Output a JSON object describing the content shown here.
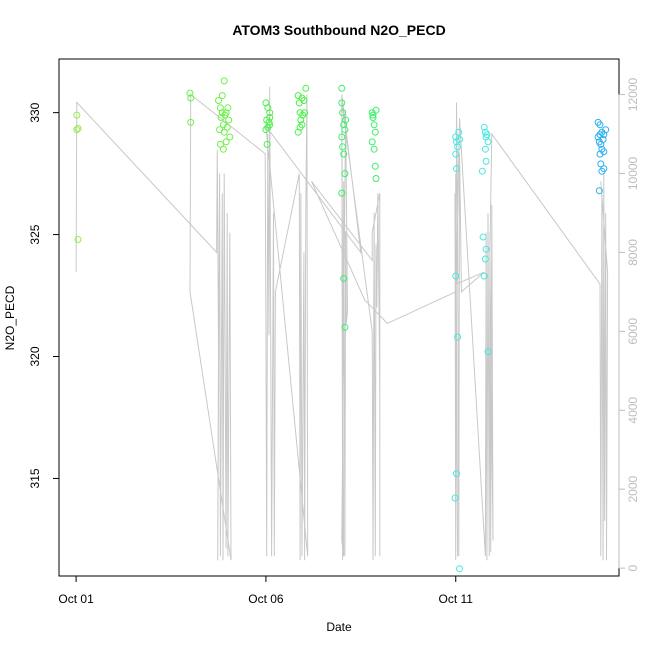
{
  "chart_data": {
    "type": "scatter",
    "title": "ATOM3 Southbound N2O_PECD",
    "xlabel": "Date",
    "ylabel": "N2O_PECD",
    "x_ticks": [
      {
        "label": "Oct 01",
        "value": 0
      },
      {
        "label": "Oct 06",
        "value": 5
      },
      {
        "label": "Oct 11",
        "value": 10
      }
    ],
    "xlim": [
      -0.45,
      14.3
    ],
    "y_ticks": [
      315,
      320,
      325,
      330
    ],
    "ylim": [
      311.0,
      332.2
    ],
    "y2_ticks": [
      0,
      2000,
      4000,
      6000,
      8000,
      10000,
      12000
    ],
    "y2lim": [
      -200,
      12900
    ],
    "grid": false,
    "legend": "none",
    "colors": {
      "frame": "#000000",
      "altitude_line": "#c8c8c8",
      "right_axis": "#bdbdbd"
    },
    "series": [
      {
        "color": "#8ef04a",
        "points": [
          [
            0.02,
            329.9
          ],
          [
            0.02,
            329.3
          ],
          [
            0.05,
            329.35
          ],
          [
            0.05,
            324.8
          ]
        ]
      },
      {
        "color": "#6ff04a",
        "points": [
          [
            3.0,
            330.8
          ],
          [
            3.02,
            330.6
          ],
          [
            3.02,
            329.6
          ],
          [
            3.75,
            330.5
          ],
          [
            3.8,
            330.2
          ],
          [
            3.82,
            329.8
          ],
          [
            3.85,
            330.7
          ],
          [
            3.85,
            330.0
          ],
          [
            3.88,
            329.5
          ],
          [
            3.9,
            329.2
          ],
          [
            3.92,
            329.9
          ],
          [
            3.95,
            330.0
          ],
          [
            3.95,
            328.8
          ],
          [
            3.78,
            329.3
          ],
          [
            3.8,
            328.7
          ],
          [
            3.98,
            329.4
          ],
          [
            4.0,
            330.2
          ],
          [
            4.02,
            329.7
          ],
          [
            4.05,
            329.0
          ],
          [
            3.88,
            328.5
          ],
          [
            3.9,
            331.3
          ]
        ]
      },
      {
        "color": "#4cf04a",
        "points": [
          [
            5.0,
            330.4
          ],
          [
            5.05,
            330.2
          ],
          [
            5.02,
            329.7
          ],
          [
            5.08,
            329.6
          ],
          [
            5.1,
            329.5
          ],
          [
            5.0,
            329.3
          ],
          [
            5.05,
            329.4
          ],
          [
            5.1,
            329.8
          ],
          [
            5.03,
            328.7
          ],
          [
            5.1,
            330.0
          ],
          [
            5.85,
            330.7
          ],
          [
            5.88,
            330.4
          ],
          [
            5.9,
            330.0
          ],
          [
            5.92,
            329.7
          ],
          [
            5.95,
            329.5
          ],
          [
            5.85,
            329.2
          ],
          [
            5.9,
            329.4
          ],
          [
            5.97,
            329.9
          ],
          [
            6.0,
            330.5
          ],
          [
            6.02,
            330.0
          ],
          [
            6.05,
            331.0
          ],
          [
            5.95,
            330.6
          ]
        ]
      },
      {
        "color": "#3cf06a",
        "points": [
          [
            7.0,
            331.0
          ],
          [
            7.0,
            330.4
          ],
          [
            7.02,
            330.0
          ],
          [
            7.05,
            329.5
          ],
          [
            7.08,
            329.3
          ],
          [
            7.0,
            329.0
          ],
          [
            7.02,
            328.6
          ],
          [
            7.05,
            328.3
          ],
          [
            7.08,
            327.5
          ],
          [
            7.0,
            326.7
          ],
          [
            7.05,
            323.2
          ],
          [
            7.08,
            321.2
          ],
          [
            7.1,
            329.7
          ],
          [
            7.8,
            330.0
          ],
          [
            7.82,
            329.8
          ],
          [
            7.85,
            329.5
          ],
          [
            7.88,
            329.2
          ],
          [
            7.9,
            330.1
          ],
          [
            7.8,
            328.8
          ],
          [
            7.85,
            328.5
          ],
          [
            7.88,
            327.8
          ],
          [
            7.9,
            327.3
          ],
          [
            7.82,
            329.9
          ]
        ]
      },
      {
        "color": "#4ae8e0",
        "points": [
          [
            10.0,
            329.0
          ],
          [
            10.02,
            328.8
          ],
          [
            10.05,
            328.6
          ],
          [
            10.08,
            329.2
          ],
          [
            10.1,
            328.9
          ],
          [
            10.0,
            328.3
          ],
          [
            10.02,
            327.7
          ],
          [
            10.0,
            323.3
          ],
          [
            10.05,
            320.8
          ],
          [
            10.02,
            315.2
          ],
          [
            9.98,
            314.2
          ],
          [
            10.1,
            311.3
          ],
          [
            10.75,
            329.4
          ],
          [
            10.78,
            329.2
          ],
          [
            10.8,
            329.0
          ],
          [
            10.82,
            329.1
          ],
          [
            10.85,
            328.8
          ],
          [
            10.78,
            328.5
          ],
          [
            10.8,
            328.0
          ],
          [
            10.7,
            327.6
          ],
          [
            10.72,
            324.9
          ],
          [
            10.8,
            324.4
          ],
          [
            10.78,
            324.0
          ],
          [
            10.75,
            323.3
          ],
          [
            10.85,
            320.2
          ]
        ]
      },
      {
        "color": "#2ab0f0",
        "points": [
          [
            13.75,
            329.6
          ],
          [
            13.8,
            329.5
          ],
          [
            13.85,
            329.2
          ],
          [
            13.88,
            328.9
          ],
          [
            13.9,
            329.1
          ],
          [
            13.82,
            328.7
          ],
          [
            13.85,
            328.5
          ],
          [
            13.78,
            328.8
          ],
          [
            13.8,
            328.3
          ],
          [
            13.9,
            328.4
          ],
          [
            13.75,
            329.0
          ],
          [
            13.8,
            329.1
          ],
          [
            13.85,
            327.6
          ],
          [
            13.9,
            327.7
          ],
          [
            13.82,
            327.9
          ],
          [
            13.78,
            326.8
          ],
          [
            13.95,
            329.3
          ]
        ]
      }
    ],
    "altitude_line": [
      [
        0.0,
        7500
      ],
      [
        0.02,
        11800
      ],
      [
        3.7,
        8000
      ],
      [
        3.72,
        10600
      ],
      [
        3.75,
        5500
      ],
      [
        3.73,
        200
      ],
      [
        3.78,
        10000
      ],
      [
        3.8,
        300
      ],
      [
        3.85,
        9500
      ],
      [
        3.87,
        200
      ],
      [
        3.9,
        10000
      ],
      [
        3.95,
        500
      ],
      [
        3.98,
        9000
      ],
      [
        4.0,
        300
      ],
      [
        4.05,
        8500
      ],
      [
        4.08,
        200
      ],
      [
        3.0,
        7000
      ],
      [
        3.02,
        12000
      ],
      [
        4.98,
        10500
      ],
      [
        5.0,
        6200
      ],
      [
        5.02,
        300
      ],
      [
        5.05,
        11000
      ],
      [
        5.08,
        5900
      ],
      [
        5.1,
        12200
      ],
      [
        5.15,
        300
      ],
      [
        5.2,
        9000
      ],
      [
        5.22,
        300
      ],
      [
        5.25,
        7000
      ],
      [
        5.88,
        10000
      ],
      [
        5.9,
        200
      ],
      [
        5.92,
        9500
      ],
      [
        5.95,
        300
      ],
      [
        6.0,
        8000
      ],
      [
        6.02,
        200
      ],
      [
        6.05,
        9000
      ],
      [
        6.08,
        12000
      ],
      [
        6.1,
        300
      ],
      [
        5.0,
        11200
      ],
      [
        7.5,
        8000
      ],
      [
        7.0,
        12000
      ],
      [
        7.02,
        200
      ],
      [
        7.05,
        9800
      ],
      [
        7.08,
        300
      ],
      [
        7.1,
        8500
      ],
      [
        7.12,
        6200
      ],
      [
        7.15,
        6500
      ],
      [
        7.1,
        11600
      ],
      [
        7.0,
        700
      ],
      [
        7.05,
        300
      ],
      [
        7.0,
        11800
      ],
      [
        7.8,
        6000
      ],
      [
        7.82,
        200
      ],
      [
        7.85,
        9000
      ],
      [
        7.88,
        300
      ],
      [
        7.9,
        8200
      ],
      [
        7.92,
        6600
      ],
      [
        7.95,
        9500
      ],
      [
        8.0,
        4500
      ],
      [
        8.0,
        300
      ],
      [
        8.0,
        9500
      ],
      [
        7.8,
        8500
      ],
      [
        7.8,
        7800
      ],
      [
        6.2,
        9800
      ],
      [
        7.6,
        6800
      ],
      [
        8.2,
        6200
      ],
      [
        10.0,
        7000
      ],
      [
        10.0,
        10000
      ],
      [
        10.05,
        300
      ],
      [
        9.98,
        9500
      ],
      [
        10.0,
        200
      ],
      [
        10.02,
        11800
      ],
      [
        10.05,
        9000
      ],
      [
        10.08,
        300
      ],
      [
        10.1,
        10500
      ],
      [
        10.12,
        9200
      ],
      [
        10.15,
        7000
      ],
      [
        10.75,
        7500
      ],
      [
        10.02,
        7200
      ],
      [
        10.1,
        11400
      ],
      [
        10.78,
        300
      ],
      [
        10.8,
        8500
      ],
      [
        10.82,
        200
      ],
      [
        10.85,
        9000
      ],
      [
        10.88,
        300
      ],
      [
        10.9,
        8500
      ],
      [
        10.92,
        400
      ],
      [
        10.95,
        9200
      ],
      [
        10.98,
        700
      ],
      [
        10.9,
        8000
      ],
      [
        10.95,
        11000
      ],
      [
        13.8,
        7200
      ],
      [
        13.82,
        300
      ],
      [
        13.85,
        9500
      ],
      [
        13.88,
        200
      ],
      [
        13.9,
        10000
      ],
      [
        13.92,
        1200
      ],
      [
        13.95,
        9000
      ],
      [
        13.97,
        200
      ],
      [
        14.0,
        7500
      ],
      [
        13.82,
        9800
      ]
    ]
  }
}
